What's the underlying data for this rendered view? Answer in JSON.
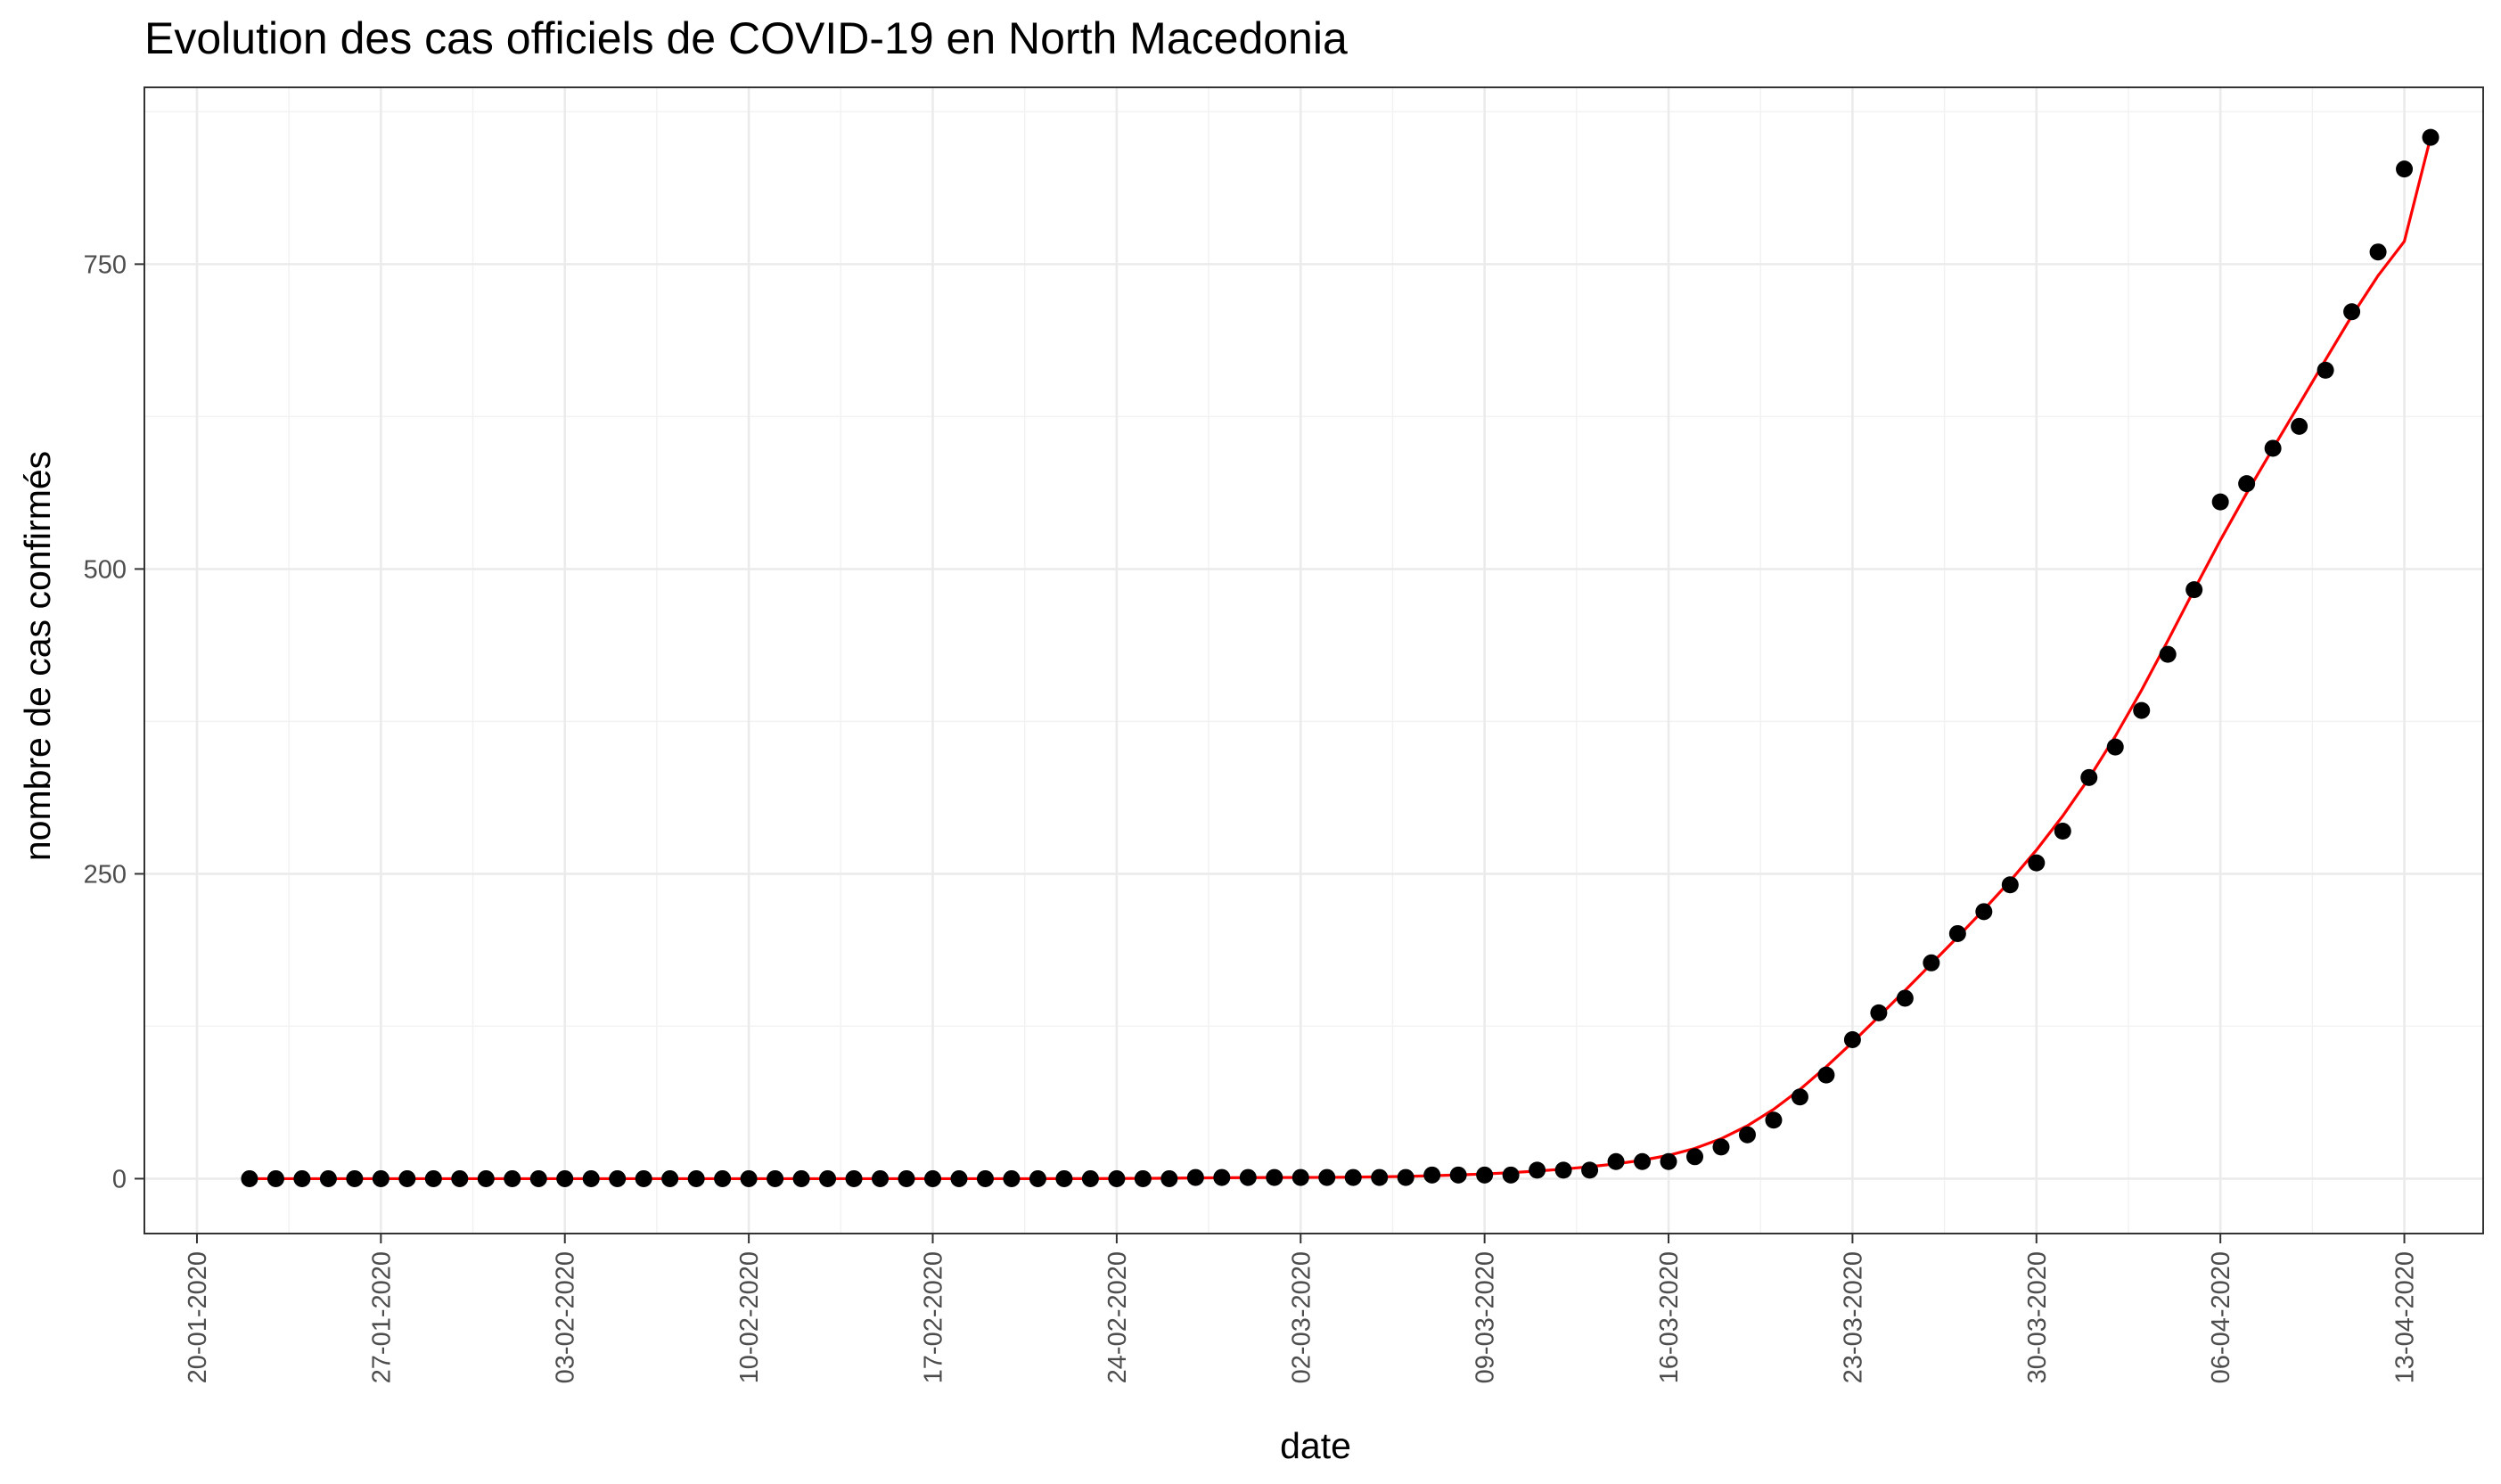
{
  "chart_data": {
    "type": "scatter",
    "title": "Evolution des cas officiels de COVID-19 en North Macedonia",
    "xlabel": "date",
    "ylabel": "nombre de cas confirmés",
    "x_start": "22-01-2020",
    "x_end": "13-04-2020",
    "xlim": [
      "18-01-2020",
      "16-04-2020"
    ],
    "ylim": [
      -45,
      895
    ],
    "x_ticks": [
      "20-01-2020",
      "27-01-2020",
      "03-02-2020",
      "10-02-2020",
      "17-02-2020",
      "24-02-2020",
      "02-03-2020",
      "09-03-2020",
      "16-03-2020",
      "23-03-2020",
      "30-03-2020",
      "06-04-2020",
      "13-04-2020"
    ],
    "y_ticks": [
      0,
      250,
      500,
      750
    ],
    "grid": true,
    "point_color": "#000000",
    "fit_color": "#ff0000",
    "series": [
      {
        "values": [
          0,
          0,
          0,
          0,
          0,
          0,
          0,
          0,
          0,
          0,
          0,
          0,
          0,
          0,
          0,
          0,
          0,
          0,
          0,
          0,
          0,
          0,
          0,
          0,
          0,
          0,
          0,
          0,
          0,
          0,
          0,
          0,
          0,
          0,
          0,
          0,
          1,
          1,
          1,
          1,
          1,
          1,
          1,
          1,
          1,
          3,
          3,
          3,
          3,
          7,
          7,
          7,
          14,
          14,
          14,
          18,
          26,
          36,
          48,
          67,
          85,
          114,
          136,
          148,
          177,
          201,
          219,
          241,
          259,
          285,
          329,
          354,
          384,
          430,
          483,
          555,
          570,
          599,
          617,
          663,
          711,
          760,
          828,
          854
        ]
      }
    ]
  }
}
